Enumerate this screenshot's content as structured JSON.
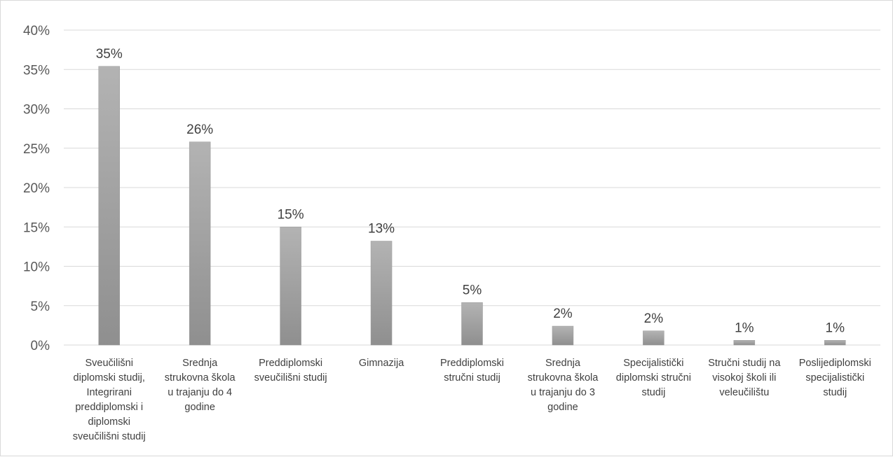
{
  "chart_data": {
    "type": "bar",
    "title": "",
    "xlabel": "",
    "ylabel": "",
    "ylim": [
      0,
      40
    ],
    "y_ticks": [
      "0%",
      "5%",
      "10%",
      "15%",
      "20%",
      "25%",
      "30%",
      "35%",
      "40%"
    ],
    "grid": true,
    "legend": "none",
    "bar_color": "#a6a6a6",
    "categories": [
      [
        "Sveučilišni",
        "diplomski studij,",
        "Integrirani",
        "preddiplomski i",
        "diplomski",
        "sveučilišni studij"
      ],
      [
        "Srednja",
        "strukovna škola",
        "u trajanju do 4",
        "godine"
      ],
      [
        "Preddiplomski",
        "sveučilišni studij"
      ],
      [
        "Gimnazija"
      ],
      [
        "Preddiplomski",
        "stručni studij"
      ],
      [
        "Srednja",
        "strukovna škola",
        "u trajanju do 3",
        "godine"
      ],
      [
        "Specijalistički",
        "diplomski stručni",
        "studij"
      ],
      [
        "Stručni studij na",
        "visokoj školi ili",
        "veleučilištu"
      ],
      [
        "Poslijediplomski",
        "specijalistički",
        "studij"
      ]
    ],
    "values": [
      35.4,
      25.8,
      15.0,
      13.2,
      5.4,
      2.4,
      1.8,
      0.6,
      0.6
    ],
    "data_labels": [
      "35%",
      "26%",
      "15%",
      "13%",
      "5%",
      "2%",
      "2%",
      "1%",
      "1%"
    ]
  }
}
